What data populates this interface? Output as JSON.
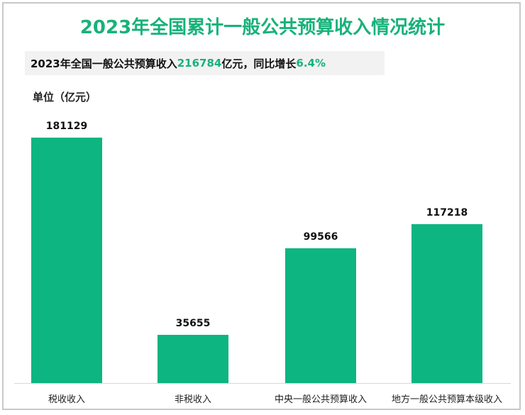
{
  "title": "2023年全国累计一般公共预算收入情况统计",
  "summary": {
    "prefix": "2023年全国一般公共预算收入",
    "total": "216784",
    "middle": "亿元，同比增长",
    "growth": "6.4%"
  },
  "unit_label": "单位（亿元）",
  "colors": {
    "bar": "#0db581",
    "accent": "#17b27a",
    "summary_bg": "#f2f2f2"
  },
  "chart_data": {
    "type": "bar",
    "title": "2023年全国累计一般公共预算收入情况统计",
    "subtitle": "2023年全国一般公共预算收入216784亿元，同比增长6.4%",
    "xlabel": "",
    "ylabel": "单位（亿元）",
    "categories": [
      "税收收入",
      "非税收入",
      "中央一般公共预算收入",
      "地方一般公共预算本级收入"
    ],
    "values": [
      181129,
      35655,
      99566,
      117218
    ],
    "labels": [
      "181129",
      "35655",
      "99566",
      "117218"
    ],
    "ylim": [
      0,
      200000
    ],
    "grid": false,
    "legend": "none"
  }
}
